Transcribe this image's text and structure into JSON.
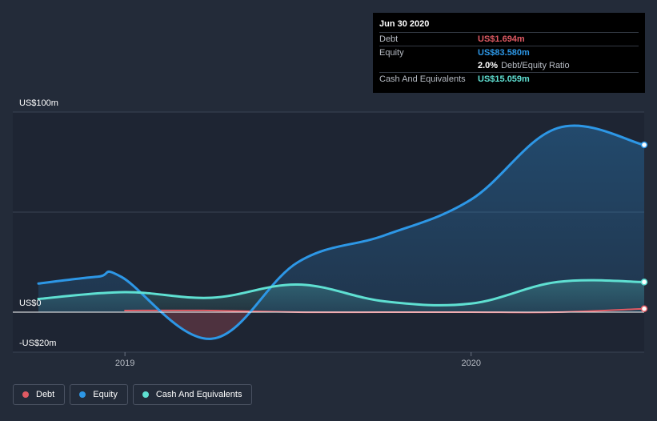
{
  "chart_data": {
    "type": "area",
    "title": "",
    "xlabel": "",
    "ylabel": "",
    "ylim": [
      -20,
      100
    ],
    "y_tick_labels": [
      {
        "value": 100,
        "label": "US$100m"
      },
      {
        "value": 0,
        "label": "US$0"
      },
      {
        "value": -20,
        "label": "-US$20m"
      }
    ],
    "x_tick_labels": [
      {
        "value": 2019.0,
        "label": "2019"
      },
      {
        "value": 2020.0,
        "label": "2020"
      }
    ],
    "xlim": [
      2018.75,
      2020.5
    ],
    "series": [
      {
        "name": "Debt",
        "color": "#e05a63",
        "points": [
          [
            2019.0,
            0.8
          ],
          [
            2019.25,
            0.8
          ],
          [
            2019.5,
            0.0
          ],
          [
            2019.75,
            0.0
          ],
          [
            2020.0,
            0.0
          ],
          [
            2020.25,
            0.0
          ],
          [
            2020.5,
            1.694
          ]
        ]
      },
      {
        "name": "Equity",
        "color": "#2d97e6",
        "points": [
          [
            2018.75,
            14.3
          ],
          [
            2018.92,
            17.7
          ],
          [
            2018.99,
            17.6
          ],
          [
            2019.25,
            -13.3
          ],
          [
            2019.5,
            25.0
          ],
          [
            2019.75,
            38.4
          ],
          [
            2020.0,
            56.3
          ],
          [
            2020.25,
            92.0
          ],
          [
            2020.5,
            83.58
          ]
        ]
      },
      {
        "name": "Cash And Equivalents",
        "color": "#5fe0d2",
        "points": [
          [
            2018.75,
            6.6
          ],
          [
            2019.0,
            10.0
          ],
          [
            2019.25,
            7.2
          ],
          [
            2019.5,
            13.8
          ],
          [
            2019.75,
            5.4
          ],
          [
            2020.0,
            4.3
          ],
          [
            2020.25,
            15.1
          ],
          [
            2020.5,
            15.059
          ]
        ]
      }
    ]
  },
  "tooltip": {
    "date": "Jun 30 2020",
    "rows": {
      "debt": {
        "label": "Debt",
        "value": "US$1.694m",
        "color": "#e05a63"
      },
      "equity": {
        "label": "Equity",
        "value": "US$83.580m",
        "color": "#2d97e6"
      },
      "ratio": {
        "value": "2.0%",
        "label": "Debt/Equity Ratio"
      },
      "cash": {
        "label": "Cash And Equivalents",
        "value": "US$15.059m",
        "color": "#5fe0d2"
      }
    }
  },
  "legend": {
    "items": [
      {
        "label": "Debt",
        "color": "#e05a63"
      },
      {
        "label": "Equity",
        "color": "#2d97e6"
      },
      {
        "label": "Cash And Equivalents",
        "color": "#5fe0d2"
      }
    ]
  }
}
